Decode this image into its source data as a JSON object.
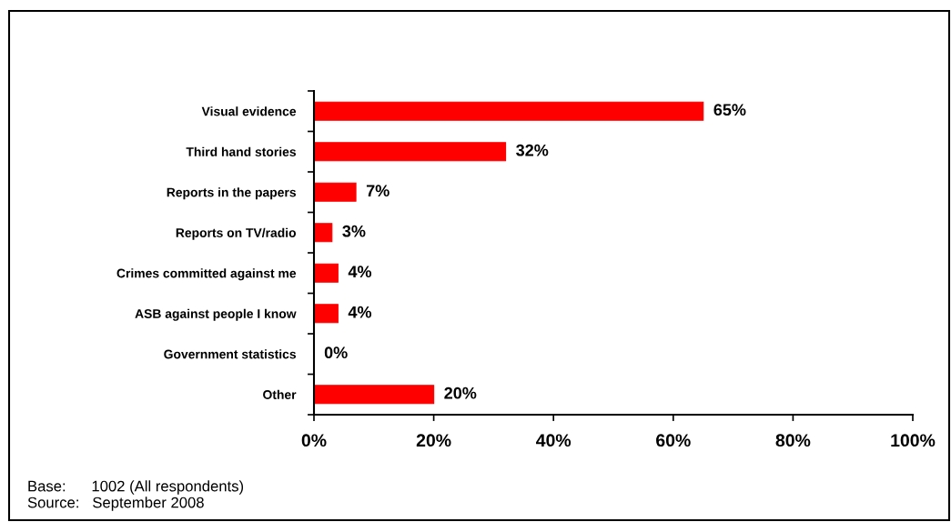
{
  "chart_data": {
    "type": "bar",
    "orientation": "horizontal",
    "categories": [
      "Visual evidence",
      "Third hand stories",
      "Reports in the papers",
      "Reports on TV/radio",
      "Crimes committed against me",
      "ASB against people I know",
      "Government statistics",
      "Other"
    ],
    "values": [
      65,
      32,
      7,
      3,
      4,
      4,
      0,
      20
    ],
    "color": "#ff0000",
    "value_labels": [
      "65%",
      "32%",
      "7%",
      "3%",
      "4%",
      "4%",
      "0%",
      "20%"
    ],
    "xlim": [
      0,
      100
    ],
    "xticks": [
      {
        "value": 0,
        "label": "0%"
      },
      {
        "value": 20,
        "label": "20%"
      },
      {
        "value": 40,
        "label": "40%"
      },
      {
        "value": 60,
        "label": "60%"
      },
      {
        "value": 80,
        "label": "80%"
      },
      {
        "value": 100,
        "label": "100%"
      }
    ],
    "grid": false,
    "legend": false,
    "annotations": [
      "Base:      1002 (All respondents)",
      "Source:   September 2008"
    ]
  }
}
